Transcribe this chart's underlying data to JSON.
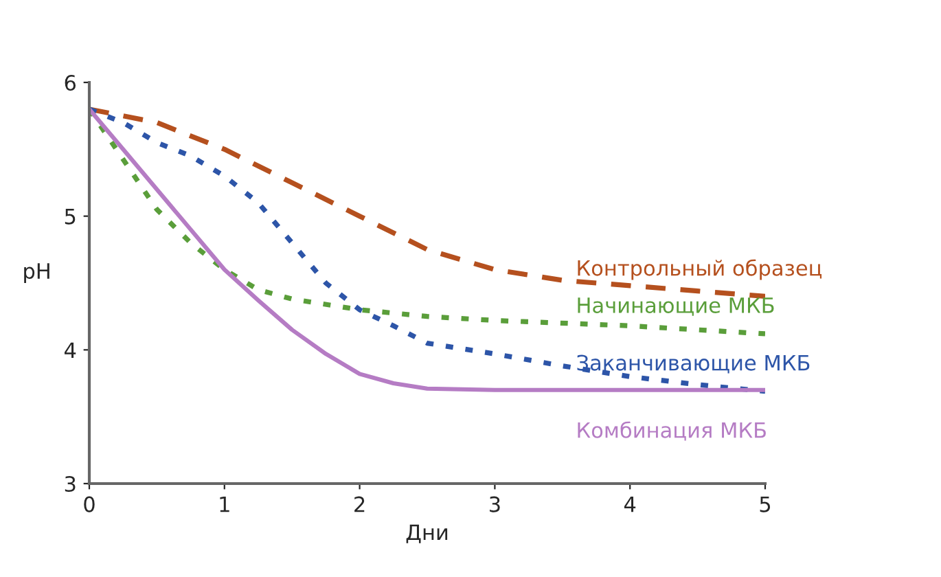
{
  "chart_data": {
    "type": "line",
    "xlabel": "Дни",
    "ylabel": "pH",
    "xlim": [
      0,
      5
    ],
    "ylim": [
      3,
      6
    ],
    "xticks": [
      0,
      1,
      2,
      3,
      4,
      5
    ],
    "yticks": [
      3,
      4,
      5,
      6
    ],
    "grid": false,
    "legend": false,
    "series": [
      {
        "name": "Контрольный образец",
        "color": "#b5501e",
        "line_style": "dashed",
        "x": [
          0,
          0.5,
          1,
          1.5,
          2,
          2.5,
          3,
          3.5,
          4,
          4.5,
          5
        ],
        "values": [
          5.8,
          5.7,
          5.5,
          5.25,
          5.0,
          4.75,
          4.6,
          4.52,
          4.48,
          4.44,
          4.4
        ]
      },
      {
        "name": "Начинающие МКБ",
        "color": "#5a9e3a",
        "line_style": "dotted",
        "x": [
          0,
          0.5,
          0.75,
          1,
          1.25,
          1.5,
          2,
          2.5,
          3,
          4,
          5
        ],
        "values": [
          5.8,
          5.05,
          4.8,
          4.6,
          4.45,
          4.38,
          4.3,
          4.25,
          4.22,
          4.18,
          4.12
        ]
      },
      {
        "name": "Заканчивающие МКБ",
        "color": "#2d55a8",
        "line_style": "dotted",
        "x": [
          0,
          0.25,
          0.5,
          0.75,
          1,
          1.25,
          1.5,
          1.75,
          2,
          2.25,
          2.5,
          3,
          3.5,
          4,
          4.5,
          5
        ],
        "values": [
          5.8,
          5.7,
          5.55,
          5.45,
          5.3,
          5.1,
          4.8,
          4.5,
          4.3,
          4.18,
          4.05,
          3.97,
          3.88,
          3.8,
          3.74,
          3.69
        ]
      },
      {
        "name": "Комбинация МКБ",
        "color": "#b57cc4",
        "line_style": "solid",
        "x": [
          0,
          0.25,
          0.5,
          0.75,
          1,
          1.25,
          1.5,
          1.75,
          2,
          2.25,
          2.5,
          3,
          4,
          5
        ],
        "values": [
          5.8,
          5.5,
          5.2,
          4.9,
          4.6,
          4.37,
          4.15,
          3.97,
          3.82,
          3.75,
          3.71,
          3.7,
          3.7,
          3.7
        ]
      }
    ]
  }
}
